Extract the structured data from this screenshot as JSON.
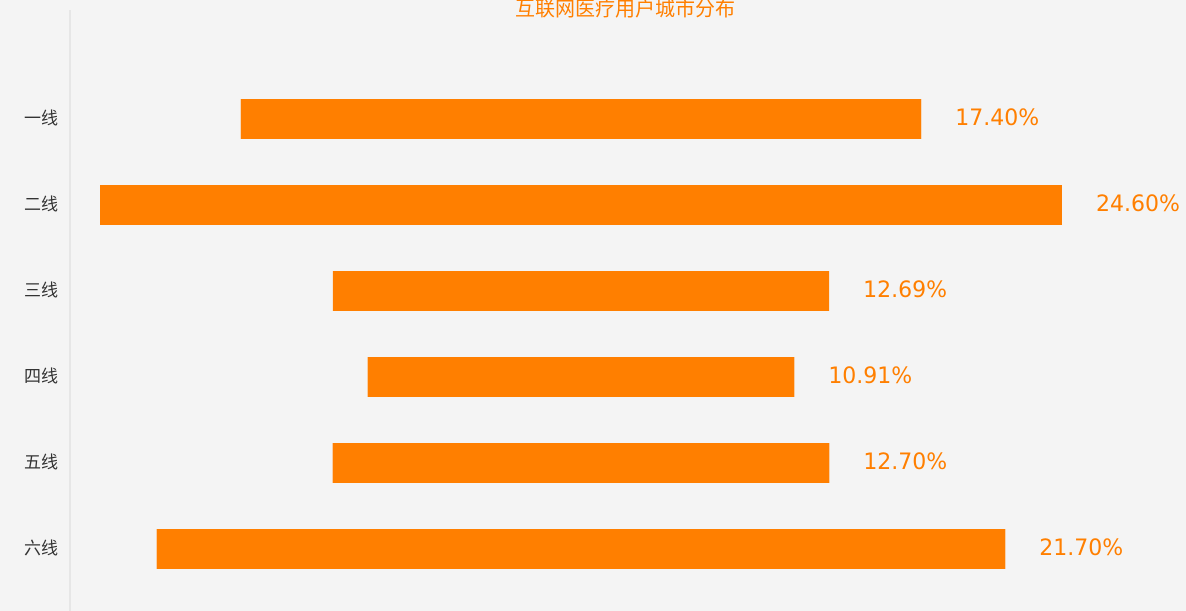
{
  "chart_data": {
    "type": "bar",
    "orientation": "horizontal",
    "align": "center",
    "title": "互联网医疗用户城市分布",
    "categories": [
      "一线",
      "二线",
      "三线",
      "四线",
      "五线",
      "六线"
    ],
    "values": [
      17.4,
      24.6,
      12.69,
      10.91,
      12.7,
      21.7
    ],
    "value_labels": [
      "17.40%",
      "24.60%",
      "12.69%",
      "10.91%",
      "12.70%",
      "21.70%"
    ],
    "color": "#ff7f00"
  }
}
